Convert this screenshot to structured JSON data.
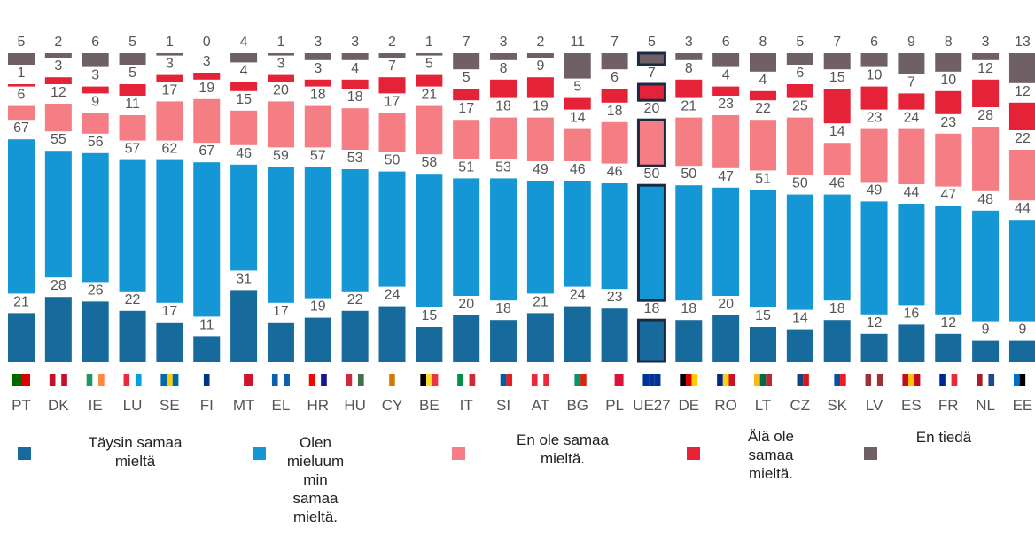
{
  "chart_data": {
    "type": "stacked-bar",
    "categories": [
      "PT",
      "DK",
      "IE",
      "LU",
      "SE",
      "FI",
      "MT",
      "EL",
      "HR",
      "HU",
      "CY",
      "BE",
      "IT",
      "SI",
      "AT",
      "BG",
      "PL",
      "UE27",
      "DE",
      "RO",
      "LT",
      "CZ",
      "SK",
      "LV",
      "ES",
      "FR",
      "NL",
      "EE"
    ],
    "highlight": "UE27",
    "series": [
      {
        "name": "Täysin samaa mieltä",
        "color": "#176a9c",
        "values": [
          21,
          28,
          26,
          22,
          17,
          11,
          31,
          17,
          19,
          22,
          24,
          15,
          20,
          18,
          21,
          24,
          23,
          18,
          18,
          20,
          15,
          14,
          18,
          12,
          16,
          12,
          9,
          9
        ]
      },
      {
        "name": "Olen mieluummin samaa mieltä.",
        "color": "#1497d4",
        "values": [
          67,
          55,
          56,
          57,
          62,
          67,
          46,
          59,
          57,
          53,
          50,
          58,
          51,
          53,
          49,
          46,
          46,
          50,
          50,
          47,
          51,
          50,
          46,
          49,
          44,
          47,
          48,
          44
        ]
      },
      {
        "name": "En ole samaa mieltä.",
        "color": "#f57d84",
        "values": [
          6,
          12,
          9,
          11,
          17,
          19,
          15,
          20,
          18,
          18,
          17,
          21,
          17,
          18,
          19,
          14,
          18,
          20,
          21,
          23,
          22,
          25,
          14,
          23,
          24,
          23,
          28,
          22
        ]
      },
      {
        "name": "Älä ole samaa mieltä.",
        "color": "#e52238",
        "values": [
          1,
          3,
          3,
          5,
          3,
          3,
          4,
          3,
          3,
          4,
          7,
          5,
          5,
          8,
          9,
          5,
          6,
          7,
          8,
          4,
          4,
          6,
          15,
          10,
          7,
          10,
          12,
          12
        ]
      },
      {
        "name": "En tiedä",
        "color": "#6e6064",
        "values": [
          5,
          2,
          6,
          5,
          1,
          0,
          4,
          1,
          3,
          3,
          2,
          1,
          7,
          3,
          2,
          11,
          7,
          5,
          3,
          6,
          8,
          5,
          7,
          6,
          9,
          8,
          3,
          13
        ]
      }
    ]
  }
}
